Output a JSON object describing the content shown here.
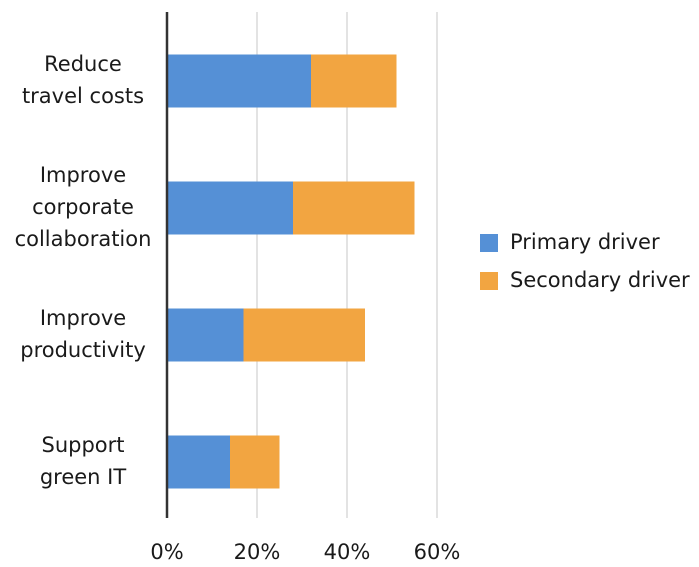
{
  "chart_data": {
    "type": "bar",
    "orientation": "horizontal",
    "stacked": true,
    "categories": [
      [
        "Reduce",
        "travel costs"
      ],
      [
        "Improve",
        "corporate",
        "collaboration"
      ],
      [
        "Improve",
        "productivity"
      ],
      [
        "Support",
        "green IT"
      ]
    ],
    "series": [
      {
        "name": "Primary driver",
        "values": [
          32,
          28,
          17,
          14
        ],
        "color": "#5590d6"
      },
      {
        "name": "Secondary driver",
        "values": [
          19,
          27,
          27,
          11
        ],
        "color": "#f2a541"
      }
    ],
    "x_ticks": [
      "0%",
      "20%",
      "40%",
      "60%"
    ],
    "xlim": [
      0,
      60
    ],
    "grid": true,
    "legend_position": "right"
  }
}
